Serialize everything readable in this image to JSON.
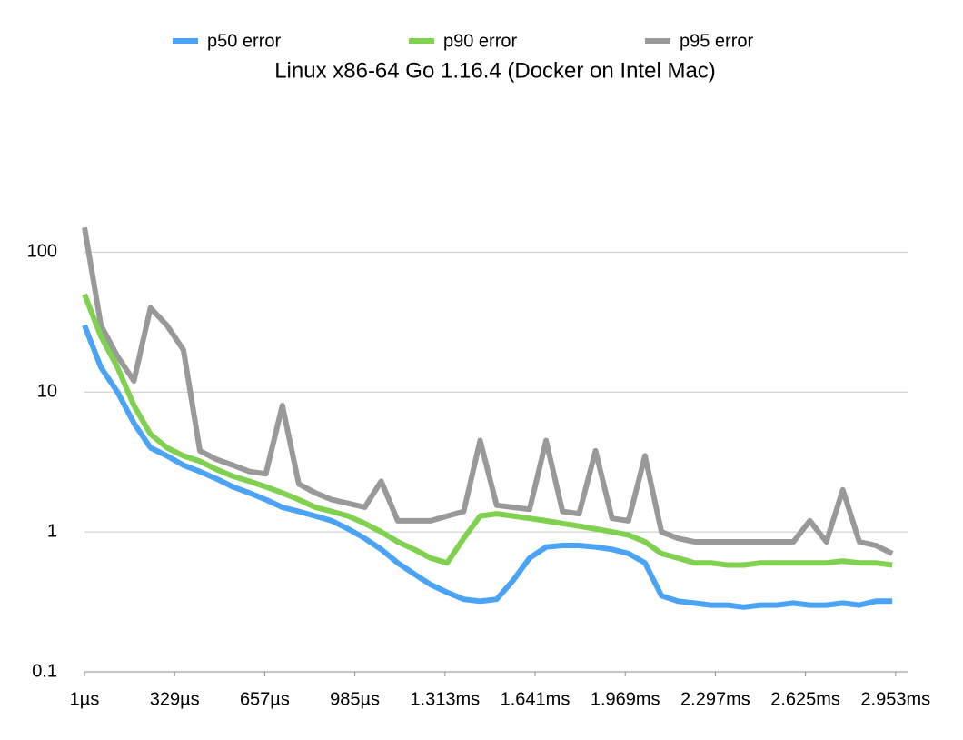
{
  "chart_data": {
    "type": "line",
    "title": "Linux x86-64 Go 1.16.4 (Docker on Intel Mac)",
    "x": [
      1,
      61,
      121,
      181,
      241,
      301,
      361,
      421,
      481,
      541,
      601,
      661,
      721,
      781,
      841,
      901,
      961,
      1021,
      1081,
      1141,
      1201,
      1261,
      1321,
      1381,
      1441,
      1501,
      1561,
      1621,
      1681,
      1741,
      1801,
      1861,
      1921,
      1981,
      2041,
      2101,
      2161,
      2221,
      2281,
      2341,
      2401,
      2461,
      2521,
      2581,
      2641,
      2701,
      2761,
      2821,
      2881,
      2941
    ],
    "series": [
      {
        "name": "p50 error",
        "color": "#4ba3f5",
        "values": [
          30,
          15,
          10,
          6,
          4,
          3.5,
          3,
          2.7,
          2.4,
          2.1,
          1.9,
          1.7,
          1.5,
          1.4,
          1.3,
          1.2,
          1.05,
          0.9,
          0.75,
          0.6,
          0.5,
          0.42,
          0.37,
          0.33,
          0.32,
          0.33,
          0.45,
          0.65,
          0.78,
          0.8,
          0.8,
          0.78,
          0.75,
          0.7,
          0.6,
          0.35,
          0.32,
          0.31,
          0.3,
          0.3,
          0.29,
          0.3,
          0.3,
          0.31,
          0.3,
          0.3,
          0.31,
          0.3,
          0.32,
          0.32
        ]
      },
      {
        "name": "p90 error",
        "color": "#7fd14f",
        "values": [
          50,
          25,
          15,
          8,
          5,
          4,
          3.5,
          3.2,
          2.8,
          2.5,
          2.3,
          2.1,
          1.9,
          1.7,
          1.5,
          1.4,
          1.3,
          1.15,
          1,
          0.85,
          0.75,
          0.65,
          0.6,
          0.9,
          1.3,
          1.35,
          1.3,
          1.25,
          1.2,
          1.15,
          1.1,
          1.05,
          1,
          0.95,
          0.85,
          0.7,
          0.65,
          0.6,
          0.6,
          0.58,
          0.58,
          0.6,
          0.6,
          0.6,
          0.6,
          0.6,
          0.62,
          0.6,
          0.6,
          0.58
        ]
      },
      {
        "name": "p95 error",
        "color": "#999999",
        "values": [
          150,
          30,
          18,
          12,
          40,
          30,
          20,
          3.8,
          3.3,
          3,
          2.7,
          2.6,
          8,
          2.2,
          1.9,
          1.7,
          1.6,
          1.5,
          2.3,
          1.2,
          1.2,
          1.2,
          1.3,
          1.4,
          4.5,
          1.55,
          1.5,
          1.45,
          4.5,
          1.4,
          1.35,
          3.8,
          1.25,
          1.2,
          3.5,
          1,
          0.9,
          0.85,
          0.85,
          0.85,
          0.85,
          0.85,
          0.85,
          0.85,
          1.2,
          0.85,
          2,
          0.85,
          0.8,
          0.7
        ]
      }
    ],
    "xlim": [
      1,
      3000
    ],
    "xticks": [
      {
        "value": 1,
        "label": "1µs"
      },
      {
        "value": 329,
        "label": "329µs"
      },
      {
        "value": 657,
        "label": "657µs"
      },
      {
        "value": 985,
        "label": "985µs"
      },
      {
        "value": 1313,
        "label": "1.313ms"
      },
      {
        "value": 1641,
        "label": "1.641ms"
      },
      {
        "value": 1969,
        "label": "1.969ms"
      },
      {
        "value": 2297,
        "label": "2.297ms"
      },
      {
        "value": 2625,
        "label": "2.625ms"
      },
      {
        "value": 2953,
        "label": "2.953ms"
      }
    ],
    "ylim": [
      0.1,
      200
    ],
    "yticks": [
      0.1,
      1,
      10,
      100
    ],
    "log_y": true,
    "grid": true,
    "legend": "top"
  }
}
